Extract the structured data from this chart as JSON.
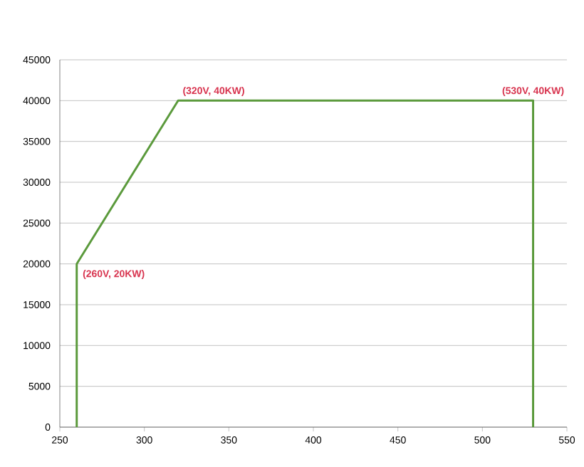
{
  "chart_data": {
    "type": "line",
    "x": [
      260,
      260,
      320,
      530,
      530
    ],
    "series": [
      {
        "color": "#5b9a3c",
        "values": [
          0,
          20000,
          40000,
          40000,
          0
        ]
      }
    ],
    "xlim": [
      250,
      550
    ],
    "xticks": [
      250,
      300,
      350,
      400,
      450,
      500,
      550
    ],
    "ylim": [
      0,
      45000
    ],
    "yticks": [
      0,
      5000,
      10000,
      15000,
      20000,
      25000,
      30000,
      35000,
      40000,
      45000
    ],
    "grid": "y",
    "marker": "none",
    "line_style": "solid",
    "annotations": [
      {
        "text": "(320V, 40KW)",
        "x": 320,
        "y": 40000
      },
      {
        "text": "(530V, 40KW)",
        "x": 530,
        "y": 40000
      },
      {
        "text": "(260V, 20KW)",
        "x": 260,
        "y": 20000
      }
    ]
  }
}
